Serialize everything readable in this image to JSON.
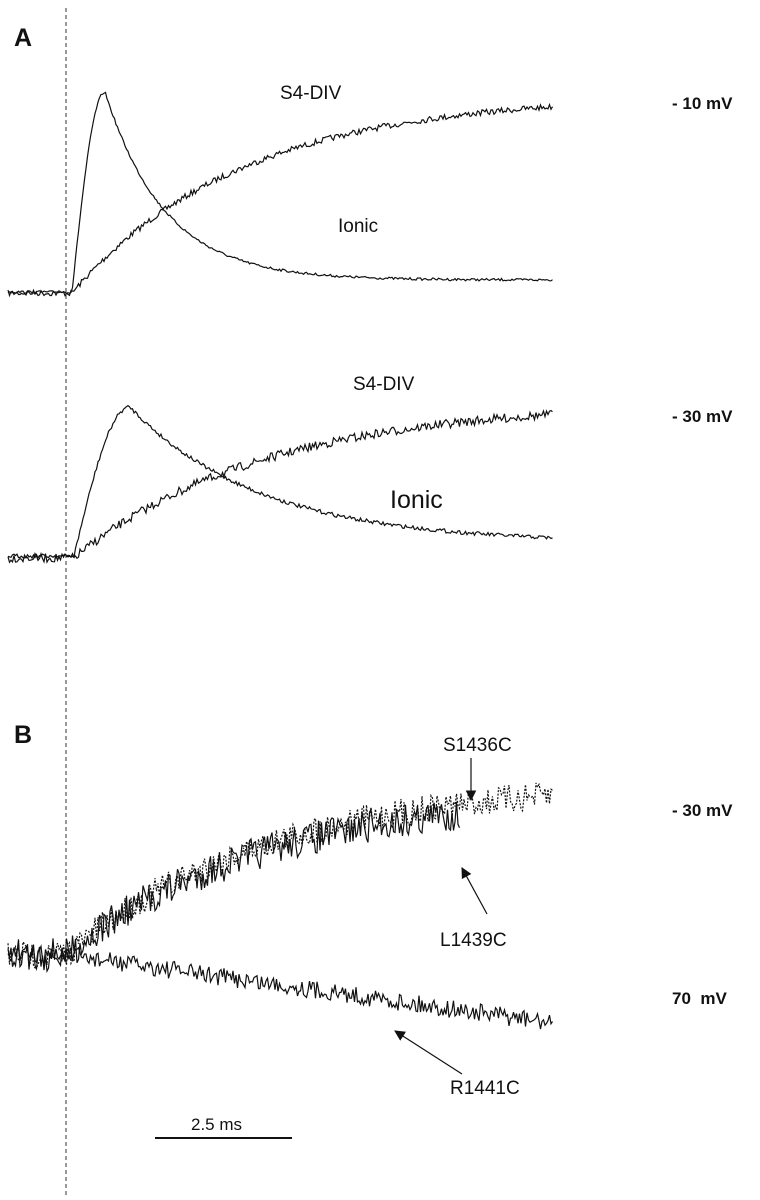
{
  "panels": [
    {
      "label": "A",
      "rows": [
        {
          "voltage": "- 10 mV",
          "traces": [
            "S4-DIV",
            "Ionic"
          ]
        },
        {
          "voltage": "- 30 mV",
          "traces": [
            "S4-DIV",
            "Ionic"
          ]
        }
      ]
    },
    {
      "label": "B",
      "rows": [
        {
          "voltage": "- 30 mV",
          "traces": [
            "S1436C",
            "L1439C"
          ]
        },
        {
          "voltage": "70  mV",
          "traces": [
            "R1441C"
          ]
        }
      ]
    }
  ],
  "scale_bar": "2.5 ms"
}
